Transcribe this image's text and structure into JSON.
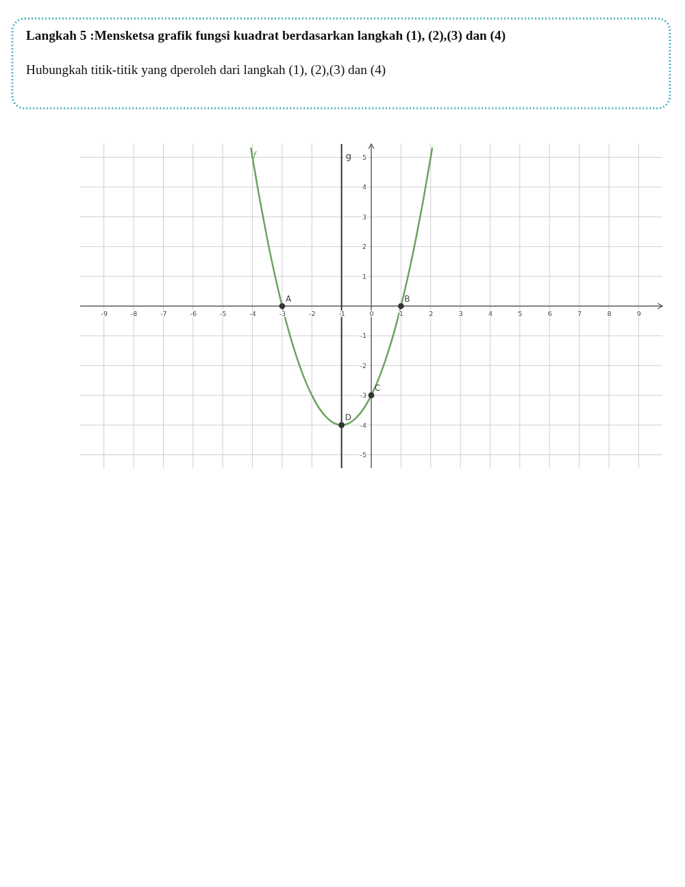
{
  "chart_data": {
    "type": "line",
    "title": "Langkah 5 :Mensketsa grafik fungsi kuadrat berdasarkan langkah (1), (2),(3) dan (4)",
    "subtitle": "Hubungkah titik-titik yang dperoleh dari langkah (1), (2),(3) dan (4)",
    "xlim": [
      -9.8,
      9.8
    ],
    "ylim": [
      -5.45,
      5.45
    ],
    "xticks": [
      -9,
      -8,
      -7,
      -6,
      -5,
      -4,
      -3,
      -2,
      -1,
      0,
      1,
      2,
      3,
      4,
      5,
      6,
      7,
      8,
      9
    ],
    "yticks": [
      -5,
      -4,
      -3,
      -2,
      -1,
      1,
      2,
      3,
      4,
      5
    ],
    "grid": true,
    "series": [
      {
        "name": "f",
        "color": "#6aa35f",
        "x": [
          -4.05,
          -4,
          -3.75,
          -3.5,
          -3.25,
          -3,
          -2.75,
          -2.5,
          -2.25,
          -2,
          -1.75,
          -1.5,
          -1.25,
          -1,
          -0.75,
          -0.5,
          -0.25,
          0,
          0.25,
          0.5,
          0.75,
          1,
          1.25,
          1.5,
          1.75,
          2,
          2.05
        ],
        "values": [
          5.3,
          5,
          3.56,
          2.25,
          1.06,
          0,
          -0.94,
          -1.75,
          -2.44,
          -3,
          -3.44,
          -3.75,
          -3.94,
          -4,
          -3.94,
          -3.75,
          -3.44,
          -3,
          -2.44,
          -1.75,
          -0.94,
          0,
          1.06,
          2.25,
          3.56,
          5,
          5.3
        ]
      },
      {
        "type": "scatter",
        "color": "#333333",
        "marker": "circle",
        "x": [
          -3,
          1,
          0,
          -1
        ],
        "values": [
          0,
          0,
          -3,
          -4
        ],
        "value_labels": [
          "A",
          "B",
          "C",
          "D"
        ]
      }
    ],
    "ref_lines": [
      {
        "axis": "x",
        "value": -1,
        "label": "g",
        "color": "#333333"
      }
    ]
  }
}
